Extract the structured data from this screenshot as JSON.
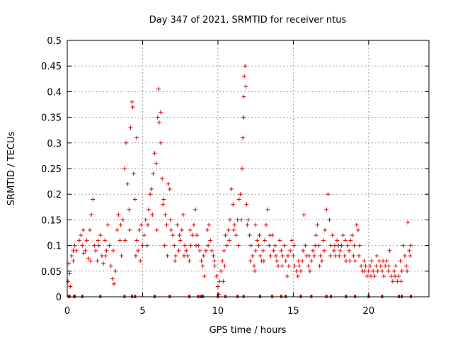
{
  "chart_data": {
    "type": "scatter",
    "title": "Day 347 of 2021, SRMTID for receiver ntus",
    "xlabel": "GPS time / hours",
    "ylabel": "SRMTID / TECUs",
    "xlim": [
      0,
      24
    ],
    "ylim": [
      0,
      0.5
    ],
    "xticks": [
      0,
      5,
      10,
      15,
      20
    ],
    "xtick_labels": [
      "0",
      "5",
      "10",
      "15",
      "20"
    ],
    "yticks": [
      0,
      0.05,
      0.1,
      0.15,
      0.2,
      0.25,
      0.3,
      0.35,
      0.4,
      0.45,
      0.5
    ],
    "ytick_labels": [
      "0",
      "0.05",
      "0.1",
      "0.15",
      "0.2",
      "0.25",
      "0.3",
      "0.35",
      "0.4",
      "0.45",
      "0.5"
    ],
    "grid": true,
    "series": [
      {
        "name": "SRMTID",
        "color": "#dd0000",
        "marker": "plus",
        "points": [
          [
            0.05,
            0.03
          ],
          [
            0.1,
            0.065
          ],
          [
            0.15,
            0.045
          ],
          [
            0.2,
            0.02
          ],
          [
            0.3,
            0.08
          ],
          [
            0.4,
            0.07
          ],
          [
            0.5,
            0.1
          ],
          [
            0.6,
            0.09
          ],
          [
            0.8,
            0.11
          ],
          [
            0.9,
            0.12
          ],
          [
            1.0,
            0.1
          ],
          [
            1.1,
            0.085
          ],
          [
            1.2,
            0.09
          ],
          [
            1.3,
            0.11
          ],
          [
            1.4,
            0.075
          ],
          [
            1.5,
            0.13
          ],
          [
            1.6,
            0.16
          ],
          [
            1.7,
            0.19
          ],
          [
            1.8,
            0.1
          ],
          [
            1.9,
            0.09
          ],
          [
            2.0,
            0.07
          ],
          [
            2.1,
            0.1
          ],
          [
            2.2,
            0.12
          ],
          [
            2.3,
            0.08
          ],
          [
            2.4,
            0.065
          ],
          [
            2.5,
            0.11
          ],
          [
            2.6,
            0.09
          ],
          [
            2.7,
            0.14
          ],
          [
            2.8,
            0.1
          ],
          [
            2.9,
            0.06
          ],
          [
            3.0,
            0.035
          ],
          [
            3.1,
            0.025
          ],
          [
            3.2,
            0.05
          ],
          [
            3.3,
            0.13
          ],
          [
            3.4,
            0.16
          ],
          [
            3.5,
            0.11
          ],
          [
            3.6,
            0.08
          ],
          [
            3.7,
            0.15
          ],
          [
            3.8,
            0.25
          ],
          [
            3.9,
            0.3
          ],
          [
            4.0,
            0.22
          ],
          [
            4.1,
            0.17
          ],
          [
            4.2,
            0.33
          ],
          [
            4.3,
            0.38
          ],
          [
            4.35,
            0.37
          ],
          [
            4.4,
            0.24
          ],
          [
            4.5,
            0.19
          ],
          [
            4.6,
            0.11
          ],
          [
            4.7,
            0.09
          ],
          [
            4.8,
            0.13
          ],
          [
            4.9,
            0.14
          ],
          [
            5.0,
            0.1
          ],
          [
            5.1,
            0.12
          ],
          [
            5.2,
            0.15
          ],
          [
            5.3,
            0.1
          ],
          [
            5.4,
            0.17
          ],
          [
            5.5,
            0.2
          ],
          [
            5.6,
            0.21
          ],
          [
            5.7,
            0.24
          ],
          [
            5.8,
            0.28
          ],
          [
            5.9,
            0.26
          ],
          [
            6.0,
            0.35
          ],
          [
            6.05,
            0.405
          ],
          [
            6.1,
            0.34
          ],
          [
            6.2,
            0.3
          ],
          [
            6.3,
            0.23
          ],
          [
            6.4,
            0.19
          ],
          [
            6.5,
            0.16
          ],
          [
            6.6,
            0.14
          ],
          [
            6.7,
            0.22
          ],
          [
            6.8,
            0.21
          ],
          [
            6.9,
            0.13
          ],
          [
            7.0,
            0.12
          ],
          [
            7.1,
            0.1
          ],
          [
            7.2,
            0.08
          ],
          [
            7.3,
            0.14
          ],
          [
            7.4,
            0.09
          ],
          [
            7.5,
            0.11
          ],
          [
            7.6,
            0.13
          ],
          [
            7.7,
            0.16
          ],
          [
            7.8,
            0.1
          ],
          [
            7.9,
            0.09
          ],
          [
            8.0,
            0.08
          ],
          [
            8.1,
            0.07
          ],
          [
            8.2,
            0.1
          ],
          [
            8.3,
            0.12
          ],
          [
            8.4,
            0.14
          ],
          [
            8.5,
            0.17
          ],
          [
            8.6,
            0.12
          ],
          [
            8.7,
            0.1
          ],
          [
            8.8,
            0.09
          ],
          [
            8.9,
            0.07
          ],
          [
            9.0,
            0.06
          ],
          [
            9.1,
            0.04
          ],
          [
            9.2,
            0.09
          ],
          [
            9.3,
            0.13
          ],
          [
            9.4,
            0.14
          ],
          [
            9.5,
            0.11
          ],
          [
            9.6,
            0.09
          ],
          [
            9.7,
            0.08
          ],
          [
            9.8,
            0.06
          ],
          [
            9.9,
            0.04
          ],
          [
            10.0,
            0.02
          ],
          [
            10.05,
            0.005
          ],
          [
            10.1,
            0.03
          ],
          [
            10.2,
            0.05
          ],
          [
            10.3,
            0.07
          ],
          [
            10.4,
            0.09
          ],
          [
            10.5,
            0.12
          ],
          [
            10.6,
            0.1
          ],
          [
            10.7,
            0.13
          ],
          [
            10.8,
            0.15
          ],
          [
            10.9,
            0.21
          ],
          [
            11.0,
            0.18
          ],
          [
            11.1,
            0.14
          ],
          [
            11.2,
            0.12
          ],
          [
            11.3,
            0.15
          ],
          [
            11.4,
            0.19
          ],
          [
            11.5,
            0.2
          ],
          [
            11.6,
            0.25
          ],
          [
            11.65,
            0.31
          ],
          [
            11.7,
            0.35
          ],
          [
            11.72,
            0.39
          ],
          [
            11.75,
            0.43
          ],
          [
            11.8,
            0.45
          ],
          [
            11.85,
            0.41
          ],
          [
            11.9,
            0.18
          ],
          [
            12.0,
            0.15
          ],
          [
            12.1,
            0.12
          ],
          [
            12.2,
            0.1
          ],
          [
            12.3,
            0.08
          ],
          [
            12.4,
            0.06
          ],
          [
            12.5,
            0.09
          ],
          [
            12.6,
            0.11
          ],
          [
            12.7,
            0.1
          ],
          [
            12.8,
            0.08
          ],
          [
            12.9,
            0.07
          ],
          [
            13.0,
            0.09
          ],
          [
            13.1,
            0.11
          ],
          [
            13.2,
            0.14
          ],
          [
            13.3,
            0.17
          ],
          [
            13.4,
            0.1
          ],
          [
            13.5,
            0.08
          ],
          [
            13.6,
            0.12
          ],
          [
            13.7,
            0.09
          ],
          [
            13.8,
            0.1
          ],
          [
            13.9,
            0.07
          ],
          [
            14.0,
            0.06
          ],
          [
            14.1,
            0.11
          ],
          [
            14.2,
            0.09
          ],
          [
            14.3,
            0.08
          ],
          [
            14.4,
            0.1
          ],
          [
            14.5,
            0.07
          ],
          [
            14.6,
            0.04
          ],
          [
            14.7,
            0.06
          ],
          [
            14.8,
            0.09
          ],
          [
            14.9,
            0.11
          ],
          [
            15.0,
            0.08
          ],
          [
            15.1,
            0.06
          ],
          [
            15.2,
            0.05
          ],
          [
            15.3,
            0.04
          ],
          [
            15.4,
            0.06
          ],
          [
            15.5,
            0.05
          ],
          [
            15.6,
            0.07
          ],
          [
            15.7,
            0.16
          ],
          [
            15.8,
            0.1
          ],
          [
            15.9,
            0.08
          ],
          [
            16.0,
            0.06
          ],
          [
            16.1,
            0.05
          ],
          [
            16.2,
            0.07
          ],
          [
            16.3,
            0.09
          ],
          [
            16.4,
            0.08
          ],
          [
            16.5,
            0.12
          ],
          [
            16.6,
            0.14
          ],
          [
            16.7,
            0.1
          ],
          [
            16.8,
            0.08
          ],
          [
            16.9,
            0.07
          ],
          [
            17.0,
            0.11
          ],
          [
            17.1,
            0.13
          ],
          [
            17.2,
            0.17
          ],
          [
            17.3,
            0.2
          ],
          [
            17.4,
            0.15
          ],
          [
            17.5,
            0.1
          ],
          [
            17.6,
            0.12
          ],
          [
            17.7,
            0.09
          ],
          [
            17.8,
            0.08
          ],
          [
            17.9,
            0.11
          ],
          [
            18.0,
            0.1
          ],
          [
            18.1,
            0.09
          ],
          [
            18.2,
            0.1
          ],
          [
            18.3,
            0.12
          ],
          [
            18.4,
            0.08
          ],
          [
            18.5,
            0.07
          ],
          [
            18.6,
            0.1
          ],
          [
            18.7,
            0.09
          ],
          [
            18.8,
            0.11
          ],
          [
            18.9,
            0.12
          ],
          [
            19.0,
            0.08
          ],
          [
            19.1,
            0.07
          ],
          [
            19.2,
            0.14
          ],
          [
            19.3,
            0.13
          ],
          [
            19.4,
            0.1
          ],
          [
            19.5,
            0.06
          ],
          [
            19.6,
            0.05
          ],
          [
            19.7,
            0.07
          ],
          [
            19.8,
            0.06
          ],
          [
            19.9,
            0.04
          ],
          [
            20.0,
            0.05
          ],
          [
            20.1,
            0.06
          ],
          [
            20.2,
            0.07
          ],
          [
            20.3,
            0.05
          ],
          [
            20.4,
            0.04
          ],
          [
            20.5,
            0.06
          ],
          [
            20.6,
            0.05
          ],
          [
            20.7,
            0.07
          ],
          [
            20.8,
            0.06
          ],
          [
            20.9,
            0.05
          ],
          [
            21.0,
            0.04
          ],
          [
            21.1,
            0.06
          ],
          [
            21.2,
            0.07
          ],
          [
            21.3,
            0.05
          ],
          [
            21.4,
            0.09
          ],
          [
            21.5,
            0.04
          ],
          [
            21.6,
            0.03
          ],
          [
            21.7,
            0.05
          ],
          [
            21.8,
            0.06
          ],
          [
            21.9,
            0.03
          ],
          [
            22.0,
            0.04
          ],
          [
            22.1,
            0.07
          ],
          [
            22.2,
            0.05
          ],
          [
            22.3,
            0.1
          ],
          [
            22.4,
            0.08
          ],
          [
            22.5,
            0.06
          ],
          [
            22.6,
            0.145
          ],
          [
            22.7,
            0.09
          ],
          [
            22.8,
            0.1
          ],
          [
            0.4,
            0.09
          ],
          [
            1.05,
            0.13
          ],
          [
            1.55,
            0.07
          ],
          [
            2.05,
            0.11
          ],
          [
            2.55,
            0.08
          ],
          [
            3.05,
            0.09
          ],
          [
            3.55,
            0.14
          ],
          [
            3.85,
            0.11
          ],
          [
            4.15,
            0.13
          ],
          [
            4.55,
            0.08
          ],
          [
            4.85,
            0.07
          ],
          [
            5.35,
            0.14
          ],
          [
            5.65,
            0.16
          ],
          [
            5.95,
            0.13
          ],
          [
            6.35,
            0.18
          ],
          [
            6.45,
            0.1
          ],
          [
            6.65,
            0.08
          ],
          [
            6.85,
            0.15
          ],
          [
            7.15,
            0.07
          ],
          [
            7.45,
            0.12
          ],
          [
            7.75,
            0.08
          ],
          [
            8.15,
            0.13
          ],
          [
            8.55,
            0.1
          ],
          [
            9.05,
            0.08
          ],
          [
            9.35,
            0.1
          ],
          [
            9.75,
            0.07
          ],
          [
            10.35,
            0.03
          ],
          [
            10.45,
            0.06
          ],
          [
            10.75,
            0.11
          ],
          [
            11.05,
            0.13
          ],
          [
            11.35,
            0.1
          ],
          [
            11.55,
            0.15
          ],
          [
            11.95,
            0.14
          ],
          [
            12.15,
            0.07
          ],
          [
            12.45,
            0.05
          ],
          [
            12.75,
            0.12
          ],
          [
            13.05,
            0.07
          ],
          [
            13.45,
            0.12
          ],
          [
            13.85,
            0.08
          ],
          [
            14.25,
            0.06
          ],
          [
            14.65,
            0.08
          ],
          [
            15.05,
            0.1
          ],
          [
            15.35,
            0.07
          ],
          [
            15.65,
            0.09
          ],
          [
            16.05,
            0.08
          ],
          [
            16.45,
            0.1
          ],
          [
            16.75,
            0.06
          ],
          [
            17.05,
            0.09
          ],
          [
            17.45,
            0.08
          ],
          [
            17.75,
            0.1
          ],
          [
            18.05,
            0.08
          ],
          [
            18.45,
            0.11
          ],
          [
            18.75,
            0.07
          ],
          [
            19.05,
            0.1
          ],
          [
            19.35,
            0.08
          ],
          [
            19.75,
            0.05
          ],
          [
            20.15,
            0.04
          ],
          [
            20.55,
            0.08
          ],
          [
            20.95,
            0.07
          ],
          [
            21.35,
            0.06
          ],
          [
            21.75,
            0.04
          ],
          [
            22.15,
            0.03
          ],
          [
            22.55,
            0.05
          ],
          [
            22.75,
            0.08
          ],
          [
            12.5,
            0.14
          ],
          [
            4.6,
            0.31
          ],
          [
            6.2,
            0.36
          ],
          [
            11.7,
            0.35
          ]
        ]
      }
    ],
    "zero_markers": [
      0.1,
      0.15,
      0.45,
      0.5,
      1.0,
      2.2,
      3.8,
      4.3,
      4.5,
      5.8,
      6.8,
      8.1,
      8.7,
      8.9,
      9.0,
      10.0,
      10.5,
      11.3,
      11.7,
      12.8,
      13.6,
      14.2,
      14.5,
      15.5,
      16.2,
      17.2,
      17.5,
      18.5,
      19.1,
      20.0,
      20.9,
      22.0,
      22.2,
      22.8
    ]
  }
}
